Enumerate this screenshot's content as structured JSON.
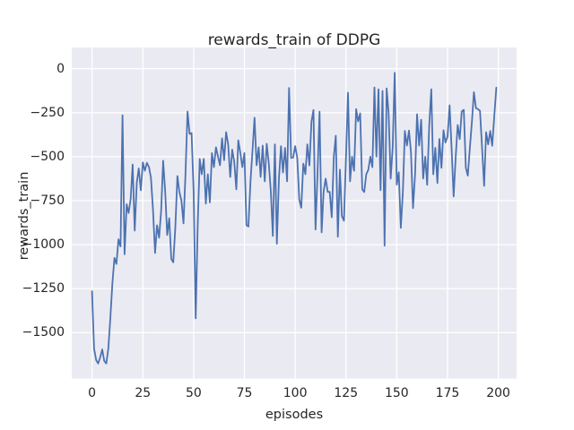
{
  "colors": {
    "figure_bg": "#ffffff",
    "axes_bg": "#eaeaf2",
    "grid": "#ffffff",
    "line": "#4c72b0",
    "text": "#262626"
  },
  "chart_data": {
    "type": "line",
    "title": "rewards_train of DDPG",
    "xlabel": "episodes",
    "ylabel": "rewards_train",
    "grid": true,
    "legend": "none",
    "xlim": [
      -10,
      209
    ],
    "ylim": [
      -1760,
      120
    ],
    "x_tick_values": [
      0,
      25,
      50,
      75,
      100,
      125,
      150,
      175,
      200
    ],
    "x_tick_labels": [
      "0",
      "25",
      "50",
      "75",
      "100",
      "125",
      "150",
      "175",
      "200"
    ],
    "y_tick_values": [
      0,
      -250,
      -500,
      -750,
      -1000,
      -1250,
      -1500
    ],
    "y_tick_labels": [
      "0",
      "−250",
      "−500",
      "−750",
      "−1000",
      "−1250",
      "−1500"
    ],
    "x_start": 0,
    "x_step": 1,
    "series": [
      {
        "name": "rewards_train",
        "color": "#4c72b0",
        "values": [
          -1265,
          -1590,
          -1655,
          -1675,
          -1640,
          -1595,
          -1660,
          -1675,
          -1590,
          -1420,
          -1220,
          -1075,
          -1110,
          -970,
          -1010,
          -265,
          -1055,
          -770,
          -820,
          -740,
          -545,
          -920,
          -650,
          -567,
          -691,
          -533,
          -580,
          -535,
          -560,
          -620,
          -803,
          -1047,
          -890,
          -960,
          -805,
          -523,
          -700,
          -945,
          -850,
          -1082,
          -1100,
          -900,
          -610,
          -700,
          -750,
          -879,
          -600,
          -244,
          -371,
          -366,
          -700,
          -1418,
          -900,
          -513,
          -600,
          -513,
          -767,
          -600,
          -760,
          -480,
          -560,
          -447,
          -500,
          -549,
          -396,
          -520,
          -361,
          -430,
          -615,
          -460,
          -530,
          -686,
          -407,
          -480,
          -560,
          -480,
          -889,
          -897,
          -640,
          -460,
          -279,
          -549,
          -447,
          -615,
          -437,
          -640,
          -427,
          -539,
          -700,
          -950,
          -430,
          -995,
          -625,
          -440,
          -590,
          -450,
          -640,
          -110,
          -508,
          -505,
          -440,
          -505,
          -745,
          -790,
          -540,
          -600,
          -430,
          -550,
          -300,
          -235,
          -914,
          -600,
          -245,
          -930,
          -700,
          -625,
          -700,
          -700,
          -844,
          -500,
          -381,
          -955,
          -574,
          -838,
          -864,
          -500,
          -137,
          -640,
          -500,
          -580,
          -230,
          -300,
          -254,
          -686,
          -701,
          -600,
          -574,
          -500,
          -560,
          -107,
          -500,
          -117,
          -691,
          -127,
          -1006,
          -112,
          -252,
          -625,
          -450,
          -24,
          -659,
          -589,
          -904,
          -700,
          -354,
          -437,
          -352,
          -472,
          -793,
          -600,
          -259,
          -437,
          -290,
          -625,
          -500,
          -660,
          -320,
          -117,
          -600,
          -450,
          -650,
          -400,
          -564,
          -350,
          -420,
          -386,
          -208,
          -450,
          -726,
          -500,
          -320,
          -400,
          -244,
          -234,
          -564,
          -608,
          -450,
          -300,
          -134,
          -225,
          -230,
          -240,
          -450,
          -666,
          -361,
          -430,
          -354,
          -438,
          -270,
          -108
        ]
      }
    ]
  }
}
